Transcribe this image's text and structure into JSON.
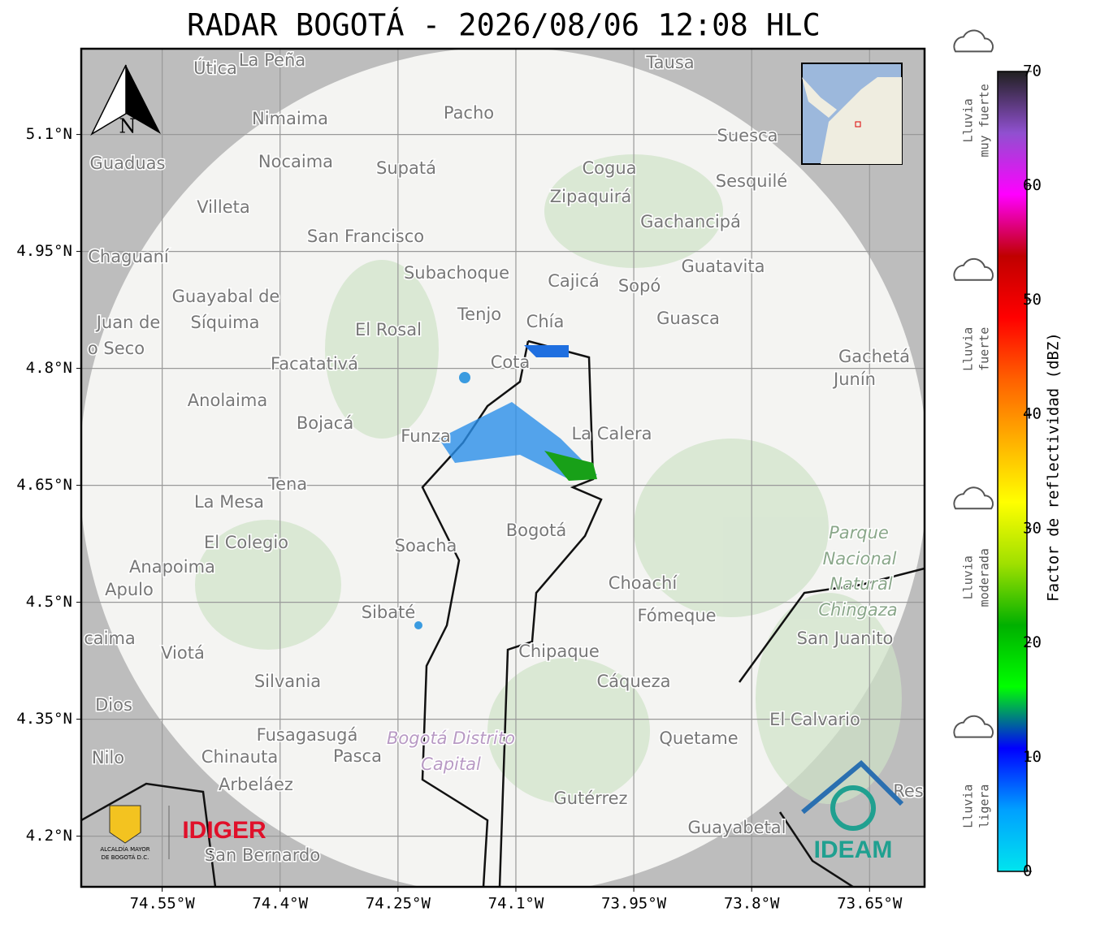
{
  "title": "RADAR BOGOTÁ - 2026/08/06 12:08 HLC",
  "map": {
    "xlim": [
      -74.653,
      -73.58
    ],
    "ylim": [
      4.135,
      5.21
    ],
    "xticks": [
      {
        "value": -74.55,
        "label": "74.55°W"
      },
      {
        "value": -74.4,
        "label": "74.4°W"
      },
      {
        "value": -74.25,
        "label": "74.25°W"
      },
      {
        "value": -74.1,
        "label": "74.1°W"
      },
      {
        "value": -73.95,
        "label": "73.95°W"
      },
      {
        "value": -73.8,
        "label": "73.8°W"
      },
      {
        "value": -73.65,
        "label": "73.65°W"
      }
    ],
    "yticks": [
      {
        "value": 4.2,
        "label": "4.2°N"
      },
      {
        "value": 4.35,
        "label": "4.35°N"
      },
      {
        "value": 4.5,
        "label": "4.5°N"
      },
      {
        "value": 4.65,
        "label": "4.65°N"
      },
      {
        "value": 4.8,
        "label": "4.8°N"
      },
      {
        "value": 4.95,
        "label": "4.95°N"
      },
      {
        "value": 5.1,
        "label": "5.1°N"
      }
    ],
    "grid": true,
    "north_label": "N",
    "places": [
      "Útica",
      "La Peña",
      "Tausa",
      "Pacho",
      "Nimaima",
      "Suesca",
      "Guaduas",
      "Nocaima",
      "Supatá",
      "Cogua",
      "Sesquilé",
      "Zipaquirá",
      "Villeta",
      "Gachancipá",
      "San Francisco",
      "Chaguaní",
      "Guatavita",
      "Subachoque",
      "Cajicá",
      "Sopó",
      "Guayabal de",
      "Síquima",
      "Tenjo",
      "Chía",
      "Guasca",
      "Juan de",
      "El Rosal",
      "o Seco",
      "Facatativá",
      "Cota",
      "Gachetá",
      "Junín",
      "Anolaima",
      "Bojacá",
      "Funza",
      "La Calera",
      "Tena",
      "La Mesa",
      "Bogotá",
      "Parque",
      "Soacha",
      "El Colegio",
      "Nacional",
      "Anapoima",
      "Natural",
      "Choachí",
      "Apulo",
      "Chingaza",
      "Sibaté",
      "Fómeque",
      "San Juanito",
      "caima",
      "Viotá",
      "Chipaque",
      "Silvania",
      "Cáqueza",
      "Dios",
      "El Calvario",
      "Fusagasugá",
      "Quetame",
      "Bogotá Distrito",
      "Nilo",
      "Chinauta",
      "Pasca",
      "Capital",
      "Arbeláez",
      "Gutérrez",
      "Res",
      "Guayabetal",
      "San Bernardo"
    ],
    "logos": {
      "idiger": "IDIGER",
      "ideam": "IDEAM",
      "alcaldia": [
        "ALCALDÍA MAYOR",
        "DE BOGOTÁ D.C."
      ]
    }
  },
  "colorbar": {
    "label": "Factor de reflectividad (dBZ)",
    "lim": [
      0,
      70
    ],
    "ticks": [
      0,
      10,
      20,
      30,
      40,
      50,
      60,
      70
    ],
    "colors": [
      "#00e5ee",
      "#00a0ff",
      "#0000ff",
      "#00ff00",
      "#00b000",
      "#a0e000",
      "#ffff00",
      "#ffb000",
      "#ff6000",
      "#ff0000",
      "#c00000",
      "#ff00ff",
      "#9050d0",
      "#202020"
    ],
    "levels": [
      {
        "value": 5,
        "lines": [
          "Lluvia",
          "ligera"
        ]
      },
      {
        "value": 25,
        "lines": [
          "Lluvia",
          "moderada"
        ]
      },
      {
        "value": 45,
        "lines": [
          "Lluvia",
          "fuerte"
        ]
      },
      {
        "value": 65,
        "lines": [
          "Lluvia",
          "muy fuerte"
        ]
      }
    ]
  }
}
